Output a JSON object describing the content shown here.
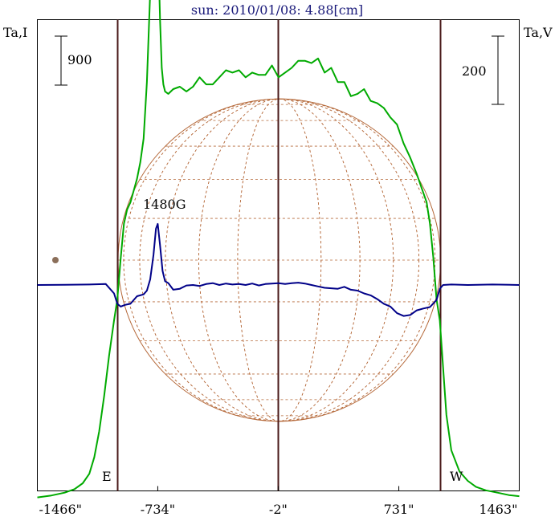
{
  "chart_data": {
    "type": "line",
    "title": "sun: 2010/01/08: 4.88[cm]",
    "left_axis_label": "Ta,I",
    "right_axis_label": "Ta,V",
    "left_scale_bar": "900",
    "right_scale_bar": "200",
    "x_ticks": [
      "-1466\"",
      "-734\"",
      "-2\"",
      "731\"",
      "1463\""
    ],
    "x_tick_values": [
      -1466,
      -734,
      -2,
      731,
      1463
    ],
    "xlim": [
      -1466,
      1463
    ],
    "limb_labels": {
      "east": "E",
      "west": "W"
    },
    "vertical_markers": [
      -980,
      -2,
      980
    ],
    "annotation": "1480G",
    "annotation_x": -734,
    "disk_radius_arcsec": 980,
    "series": [
      {
        "color": "#00aa00",
        "x": [
          -1466,
          -1380,
          -1300,
          -1240,
          -1190,
          -1150,
          -1120,
          -1090,
          -1060,
          -1030,
          -1000,
          -980,
          -960,
          -940,
          -920,
          -900,
          -880,
          -860,
          -840,
          -820,
          -800,
          -780,
          -770,
          -760,
          -750,
          -740,
          -730,
          -720,
          -710,
          -700,
          -690,
          -670,
          -640,
          -600,
          -560,
          -520,
          -480,
          -440,
          -400,
          -360,
          -320,
          -280,
          -240,
          -200,
          -160,
          -120,
          -80,
          -40,
          0,
          40,
          80,
          120,
          160,
          200,
          240,
          280,
          320,
          360,
          400,
          440,
          480,
          520,
          560,
          600,
          640,
          680,
          720,
          760,
          800,
          840,
          880,
          900,
          920,
          940,
          960,
          980,
          1000,
          1020,
          1050,
          1100,
          1150,
          1200,
          1260,
          1330,
          1400,
          1463
        ],
        "y": [
          -900,
          -892,
          -880,
          -865,
          -840,
          -800,
          -730,
          -620,
          -470,
          -300,
          -150,
          -60,
          110,
          260,
          320,
          350,
          400,
          450,
          520,
          620,
          860,
          1240,
          1470,
          1640,
          1700,
          1640,
          1380,
          1120,
          920,
          850,
          820,
          810,
          830,
          840,
          820,
          840,
          880,
          850,
          850,
          880,
          910,
          900,
          910,
          880,
          900,
          890,
          890,
          930,
          880,
          900,
          920,
          950,
          950,
          940,
          960,
          900,
          920,
          860,
          860,
          800,
          810,
          830,
          780,
          770,
          750,
          710,
          680,
          600,
          540,
          470,
          390,
          350,
          260,
          120,
          -60,
          -150,
          -350,
          -550,
          -700,
          -790,
          -830,
          -855,
          -870,
          -880,
          -890,
          -895
        ]
      },
      {
        "color": "#000088",
        "x": [
          -1466,
          -1300,
          -1150,
          -1050,
          -1000,
          -980,
          -960,
          -930,
          -900,
          -860,
          -820,
          -800,
          -780,
          -760,
          -745,
          -734,
          -720,
          -705,
          -690,
          -670,
          -640,
          -600,
          -560,
          -520,
          -480,
          -440,
          -400,
          -360,
          -320,
          -280,
          -240,
          -200,
          -160,
          -120,
          -80,
          -40,
          0,
          40,
          80,
          120,
          160,
          200,
          240,
          280,
          320,
          360,
          400,
          440,
          480,
          520,
          560,
          600,
          640,
          680,
          720,
          760,
          800,
          840,
          880,
          920,
          960,
          980,
          1000,
          1050,
          1150,
          1300,
          1463
        ],
        "y": [
          0,
          2,
          5,
          10,
          -90,
          -200,
          -230,
          -210,
          -200,
          -120,
          -100,
          -60,
          60,
          320,
          600,
          650,
          420,
          150,
          40,
          20,
          -50,
          -40,
          -5,
          0,
          -10,
          10,
          20,
          0,
          15,
          5,
          10,
          0,
          15,
          -5,
          10,
          15,
          20,
          10,
          20,
          25,
          15,
          0,
          -15,
          -30,
          -35,
          -40,
          -20,
          -50,
          -60,
          -90,
          -110,
          -150,
          -200,
          -230,
          -300,
          -330,
          -320,
          -270,
          -250,
          -235,
          -160,
          -40,
          0,
          5,
          0,
          5,
          0
        ]
      }
    ]
  }
}
